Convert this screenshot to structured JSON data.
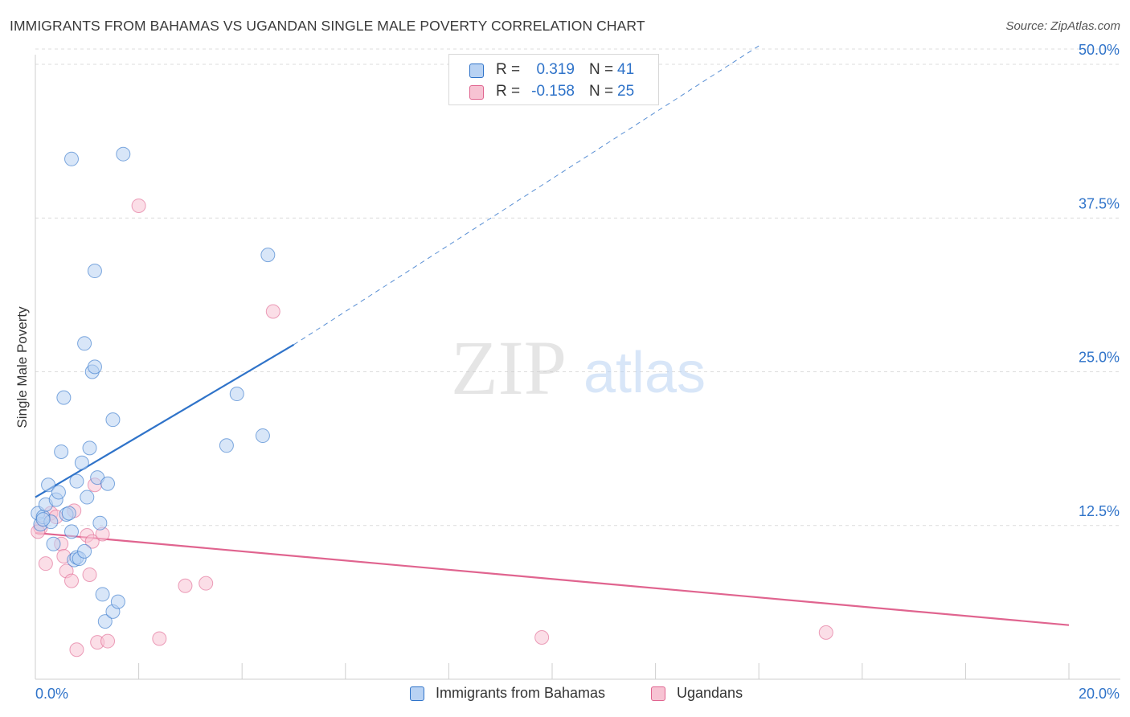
{
  "title": "IMMIGRANTS FROM BAHAMAS VS UGANDAN SINGLE MALE POVERTY CORRELATION CHART",
  "source": "Source: ZipAtlas.com",
  "colors": {
    "blue": "#2f73c9",
    "blue_fill": "#b8d2f3",
    "pink": "#e0648f",
    "pink_fill": "#f7c3d3",
    "grid": "#dcdcdc"
  },
  "legend": {
    "rows": [
      {
        "r_label": "R =",
        "r_value": "0.319",
        "n_label": "N =",
        "n_value": "41"
      },
      {
        "r_label": "R =",
        "r_value": "-0.158",
        "n_label": "N =",
        "n_value": "25"
      }
    ]
  },
  "watermark": {
    "zip": "ZIP",
    "atlas": "atlas"
  },
  "chart_data": {
    "type": "scatter",
    "title": "IMMIGRANTS FROM BAHAMAS VS UGANDAN SINGLE MALE POVERTY CORRELATION CHART",
    "xlabel": "",
    "ylabel": "Single Male Poverty",
    "xlim": [
      0,
      20
    ],
    "ylim": [
      0,
      50
    ],
    "x_tick_labels": [
      "0.0%",
      "20.0%"
    ],
    "y_ticks": [
      12.5,
      25.0,
      37.5,
      50.0
    ],
    "y_tick_labels": [
      "12.5%",
      "25.0%",
      "37.5%",
      "50.0%"
    ],
    "grid": true,
    "legend_position": "top-center",
    "series": [
      {
        "name": "Immigrants from Bahamas",
        "color": "#2f73c9",
        "points": [
          [
            0.05,
            13.5
          ],
          [
            0.1,
            12.6
          ],
          [
            0.15,
            13.2
          ],
          [
            0.2,
            14.2
          ],
          [
            0.25,
            15.8
          ],
          [
            0.3,
            12.8
          ],
          [
            0.35,
            11.0
          ],
          [
            0.4,
            14.6
          ],
          [
            0.45,
            15.2
          ],
          [
            0.5,
            18.5
          ],
          [
            0.55,
            22.9
          ],
          [
            0.6,
            13.4
          ],
          [
            0.65,
            13.5
          ],
          [
            0.7,
            12.0
          ],
          [
            0.75,
            9.7
          ],
          [
            0.8,
            16.1
          ],
          [
            0.8,
            9.9
          ],
          [
            0.85,
            9.8
          ],
          [
            0.9,
            17.6
          ],
          [
            0.95,
            27.3
          ],
          [
            0.95,
            10.4
          ],
          [
            1.0,
            14.8
          ],
          [
            1.05,
            18.8
          ],
          [
            1.1,
            25.0
          ],
          [
            1.15,
            25.4
          ],
          [
            1.2,
            16.4
          ],
          [
            1.25,
            12.7
          ],
          [
            1.3,
            6.9
          ],
          [
            1.35,
            4.7
          ],
          [
            1.4,
            15.9
          ],
          [
            0.7,
            42.3
          ],
          [
            1.15,
            33.2
          ],
          [
            1.5,
            21.1
          ],
          [
            1.5,
            5.5
          ],
          [
            1.6,
            6.3
          ],
          [
            1.7,
            42.7
          ],
          [
            3.7,
            19.0
          ],
          [
            3.9,
            23.2
          ],
          [
            4.4,
            19.8
          ],
          [
            4.5,
            34.5
          ],
          [
            0.15,
            13.0
          ]
        ],
        "trend": {
          "x1": 0.0,
          "y1": 14.8,
          "x2": 5.0,
          "y2": 27.2,
          "dashed_to_x": 14.0,
          "dashed_to_y": 51.5
        }
      },
      {
        "name": "Ugandans",
        "color": "#e0648f",
        "points": [
          [
            0.1,
            12.3
          ],
          [
            0.2,
            9.4
          ],
          [
            0.3,
            13.5
          ],
          [
            0.4,
            13.2
          ],
          [
            0.5,
            11.0
          ],
          [
            0.55,
            10.0
          ],
          [
            0.6,
            8.8
          ],
          [
            0.7,
            8.0
          ],
          [
            0.75,
            13.7
          ],
          [
            0.8,
            2.4
          ],
          [
            1.0,
            11.7
          ],
          [
            1.05,
            8.5
          ],
          [
            1.1,
            11.2
          ],
          [
            1.15,
            15.8
          ],
          [
            1.2,
            3.0
          ],
          [
            1.3,
            11.8
          ],
          [
            1.4,
            3.1
          ],
          [
            2.0,
            38.5
          ],
          [
            2.4,
            3.3
          ],
          [
            2.9,
            7.6
          ],
          [
            3.3,
            7.8
          ],
          [
            4.6,
            29.9
          ],
          [
            9.8,
            3.4
          ],
          [
            15.3,
            3.8
          ],
          [
            0.05,
            12.0
          ]
        ],
        "trend": {
          "x1": 0.0,
          "y1": 11.9,
          "x2": 20.0,
          "y2": 4.4
        }
      }
    ]
  }
}
